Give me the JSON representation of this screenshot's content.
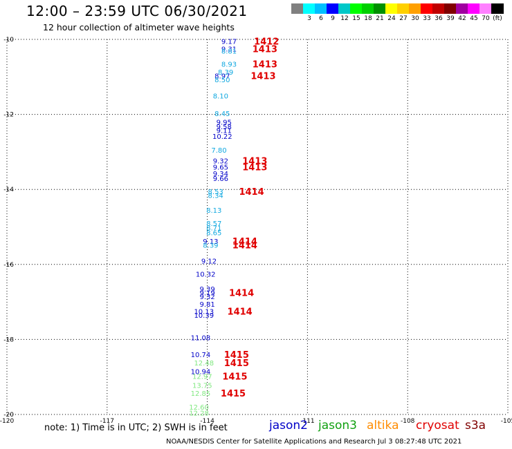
{
  "header": {
    "title": "12:00 – 23:59 UTC 06/30/2021",
    "subtitle": "12 hour collection of altimeter wave heights"
  },
  "legend": {
    "swatches": [
      {
        "color": "#808080",
        "label": ""
      },
      {
        "color": "#00ffff",
        "label": "3"
      },
      {
        "color": "#00bfff",
        "label": "6"
      },
      {
        "color": "#0000ff",
        "label": "9"
      },
      {
        "color": "#00c8c8",
        "label": "12"
      },
      {
        "color": "#00ff00",
        "label": "15"
      },
      {
        "color": "#00d000",
        "label": "18"
      },
      {
        "color": "#009000",
        "label": "21"
      },
      {
        "color": "#ffff00",
        "label": "24"
      },
      {
        "color": "#ffd000",
        "label": "27"
      },
      {
        "color": "#ffa000",
        "label": "30"
      },
      {
        "color": "#ff0000",
        "label": "33"
      },
      {
        "color": "#c00000",
        "label": "36"
      },
      {
        "color": "#800000",
        "label": "39"
      },
      {
        "color": "#a000a0",
        "label": "42"
      },
      {
        "color": "#ff00ff",
        "label": "45"
      },
      {
        "color": "#ff80ff",
        "label": "70"
      },
      {
        "color": "#000000",
        "label": "(ft)"
      }
    ]
  },
  "chart_data": {
    "type": "scatter",
    "xlim": [
      -120,
      -105
    ],
    "ylim": [
      -20,
      -10
    ],
    "x_ticks": [
      -120,
      -117,
      -114,
      -111,
      -108,
      -105
    ],
    "x_tick_labels": [
      "-120",
      "-117",
      "-114",
      "-111",
      "-108",
      "-105"
    ],
    "y_ticks": [
      -10,
      -12,
      -14,
      -16,
      -18,
      -20
    ],
    "y_tick_labels": [
      "-10",
      "-12",
      "-14",
      "-16",
      "-18",
      "-20"
    ],
    "grid": true,
    "series": [
      {
        "name": "jason2",
        "color": "#0000c8",
        "points": [
          {
            "x": -113.35,
            "y": -10.05,
            "label": "9.17"
          },
          {
            "x": -113.35,
            "y": -10.25,
            "label": "9.31"
          },
          {
            "x": -113.55,
            "y": -10.97,
            "label": "8.97"
          },
          {
            "x": -113.5,
            "y": -12.2,
            "label": "9.95"
          },
          {
            "x": -113.5,
            "y": -12.32,
            "label": "9.58"
          },
          {
            "x": -113.5,
            "y": -12.42,
            "label": "9.11"
          },
          {
            "x": -113.55,
            "y": -12.58,
            "label": "10.22"
          },
          {
            "x": -113.6,
            "y": -13.23,
            "label": "9.32"
          },
          {
            "x": -113.6,
            "y": -13.4,
            "label": "9.65"
          },
          {
            "x": -113.6,
            "y": -13.57,
            "label": "9.34"
          },
          {
            "x": -113.6,
            "y": -13.7,
            "label": "9.66"
          },
          {
            "x": -113.9,
            "y": -15.38,
            "label": "9.13"
          },
          {
            "x": -113.95,
            "y": -15.9,
            "label": "9.12"
          },
          {
            "x": -114.05,
            "y": -16.25,
            "label": "10.32"
          },
          {
            "x": -114.0,
            "y": -16.65,
            "label": "9.39"
          },
          {
            "x": -114.0,
            "y": -16.75,
            "label": "9.19"
          },
          {
            "x": -114.0,
            "y": -16.85,
            "label": "9.32"
          },
          {
            "x": -114.0,
            "y": -17.05,
            "label": "9.81"
          },
          {
            "x": -114.1,
            "y": -17.25,
            "label": "10.13"
          },
          {
            "x": -114.1,
            "y": -17.35,
            "label": "10.39"
          },
          {
            "x": -114.2,
            "y": -17.95,
            "label": "11.08"
          },
          {
            "x": -114.2,
            "y": -18.4,
            "label": "10.74"
          },
          {
            "x": -114.2,
            "y": -18.85,
            "label": "10.94"
          }
        ]
      },
      {
        "name": "jason3",
        "color": "#30c030",
        "points": []
      },
      {
        "name": "altika",
        "color": "#ff8c00",
        "points": []
      },
      {
        "name": "cryosat",
        "color": "#e00000",
        "points": []
      },
      {
        "name": "s3a",
        "color": "#800000",
        "points": []
      },
      {
        "name": "",
        "color": "#10a8e0",
        "points": [
          {
            "x": -113.35,
            "y": -10.3,
            "label": "8.81"
          },
          {
            "x": -113.35,
            "y": -10.65,
            "label": "8.93"
          },
          {
            "x": -113.45,
            "y": -10.87,
            "label": "8.39"
          },
          {
            "x": -113.55,
            "y": -11.07,
            "label": "8.50"
          },
          {
            "x": -113.6,
            "y": -11.5,
            "label": "8.10"
          },
          {
            "x": -113.55,
            "y": -11.97,
            "label": "8.45"
          },
          {
            "x": -113.65,
            "y": -12.95,
            "label": "7.80"
          },
          {
            "x": -113.75,
            "y": -14.05,
            "label": "8.53"
          },
          {
            "x": -113.75,
            "y": -14.15,
            "label": "8.34"
          },
          {
            "x": -113.8,
            "y": -14.55,
            "label": "8.13"
          },
          {
            "x": -113.8,
            "y": -14.9,
            "label": "8.57"
          },
          {
            "x": -113.8,
            "y": -15.02,
            "label": "8.71"
          },
          {
            "x": -113.8,
            "y": -15.15,
            "label": "8.65"
          },
          {
            "x": -113.9,
            "y": -15.48,
            "label": "8.39"
          }
        ]
      },
      {
        "name": "",
        "color": "#80e880",
        "points": [
          {
            "x": -114.1,
            "y": -18.62,
            "label": "12.48"
          },
          {
            "x": -114.15,
            "y": -18.98,
            "label": "12.97"
          },
          {
            "x": -114.15,
            "y": -19.22,
            "label": "13.75"
          },
          {
            "x": -114.2,
            "y": -19.43,
            "label": "12.85"
          },
          {
            "x": -114.25,
            "y": -19.8,
            "label": "12.60"
          },
          {
            "x": -114.25,
            "y": -19.95,
            "label": "12.28"
          }
        ]
      }
    ],
    "annotations": [
      {
        "text": "1412",
        "x": -112.6,
        "y": -10.05,
        "color": "#e00000"
      },
      {
        "text": "1413",
        "x": -112.65,
        "y": -10.25,
        "color": "#e00000"
      },
      {
        "text": "1413",
        "x": -112.65,
        "y": -10.65,
        "color": "#e00000"
      },
      {
        "text": "1413",
        "x": -112.7,
        "y": -10.97,
        "color": "#e00000"
      },
      {
        "text": "1413",
        "x": -112.95,
        "y": -13.23,
        "color": "#e00000"
      },
      {
        "text": "1413",
        "x": -112.95,
        "y": -13.4,
        "color": "#e00000"
      },
      {
        "text": "1414",
        "x": -113.05,
        "y": -14.05,
        "color": "#e00000"
      },
      {
        "text": "1414",
        "x": -113.25,
        "y": -15.38,
        "color": "#e00000"
      },
      {
        "text": "1414",
        "x": -113.25,
        "y": -15.48,
        "color": "#e00000"
      },
      {
        "text": "1414",
        "x": -113.35,
        "y": -16.75,
        "color": "#e00000"
      },
      {
        "text": "1414",
        "x": -113.4,
        "y": -17.25,
        "color": "#e00000"
      },
      {
        "text": "1415",
        "x": -113.5,
        "y": -18.4,
        "color": "#e00000"
      },
      {
        "text": "1415",
        "x": -113.5,
        "y": -18.62,
        "color": "#e00000"
      },
      {
        "text": "1415",
        "x": -113.55,
        "y": -18.98,
        "color": "#e00000"
      },
      {
        "text": "1415",
        "x": -113.6,
        "y": -19.43,
        "color": "#e00000"
      }
    ]
  },
  "footer": {
    "note": "note: 1) Time is in UTC; 2) SWH is in feet",
    "satellites": [
      {
        "name": "jason2",
        "color": "#0000c8"
      },
      {
        "name": "jason3",
        "color": "#10a010"
      },
      {
        "name": "altika",
        "color": "#ff8c00"
      },
      {
        "name": "cryosat",
        "color": "#e00000"
      },
      {
        "name": "s3a",
        "color": "#800000"
      }
    ],
    "credit": "NOAA/NESDIS Center for Satellite Applications and Research    Jul  3 08:27:48 UTC 2021"
  }
}
